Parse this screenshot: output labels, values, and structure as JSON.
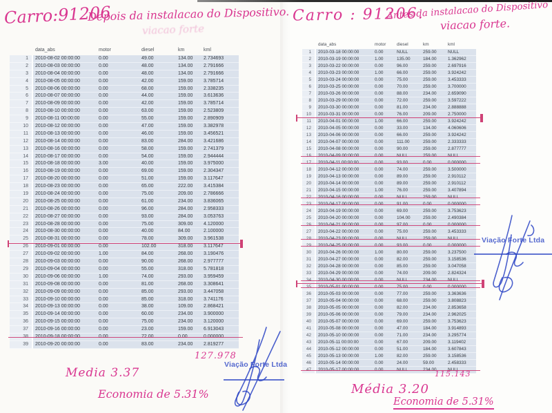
{
  "ink_colors": {
    "handwriting": "#d93690",
    "stamp_blue": "#2b44c4",
    "strike_pink": "#cb2e68",
    "table_band": "#dbe2ec",
    "table_numcol": "#eaeef4"
  },
  "left_page": {
    "handwritten": {
      "car": "Carro:91206",
      "note": "Depois da instalacao do Dispositivo.",
      "ghost": "viacao forte",
      "total": "127.978",
      "media": "Media  3.37",
      "economia": "Economia de 5.31%"
    },
    "stamp": "Viação Forte Ltda",
    "columns": [
      "data_abs",
      "motor",
      "diesel",
      "km",
      "kml"
    ],
    "struck_rows": [
      38
    ],
    "rows": [
      [
        "2010-08-02 00:00:00",
        "0.00",
        "49.00",
        "134.00",
        "2.734693"
      ],
      [
        "2010-08-03 00:00:00",
        "0.00",
        "48.00",
        "134.00",
        "2.791666"
      ],
      [
        "2010-08-04 00:00:00",
        "0.00",
        "48.00",
        "134.00",
        "2.791666"
      ],
      [
        "2010-08-05 00:00:00",
        "0.00",
        "42.00",
        "159.00",
        "3.785714"
      ],
      [
        "2010-08-06 00:00:00",
        "0.00",
        "68.00",
        "159.00",
        "2.338235"
      ],
      [
        "2010-08-07 00:00:00",
        "0.00",
        "44.00",
        "159.00",
        "3.613636"
      ],
      [
        "2010-08-09 00:00:00",
        "0.00",
        "42.00",
        "159.00",
        "3.785714"
      ],
      [
        "2010-08-10 00:00:00",
        "0.00",
        "63.00",
        "159.00",
        "2.523809"
      ],
      [
        "2010-08-11 00:00:00",
        "0.00",
        "55.00",
        "159.00",
        "2.890909"
      ],
      [
        "2010-08-12 00:00:00",
        "0.00",
        "47.00",
        "159.00",
        "3.382978"
      ],
      [
        "2010-08-13 00:00:00",
        "0.00",
        "46.00",
        "159.00",
        "3.456521"
      ],
      [
        "2010-08-14 00:00:00",
        "0.00",
        "83.00",
        "284.00",
        "3.421686"
      ],
      [
        "2010-08-16 00:00:00",
        "0.00",
        "58.00",
        "159.00",
        "2.741379"
      ],
      [
        "2010-08-17 00:00:00",
        "0.00",
        "54.00",
        "159.00",
        "2.944444"
      ],
      [
        "2010-08-18 00:00:00",
        "3.00",
        "40.00",
        "159.00",
        "3.975000"
      ],
      [
        "2010-08-19 00:00:00",
        "0.00",
        "69.00",
        "159.00",
        "2.304347"
      ],
      [
        "2010-08-20 00:00:00",
        "0.00",
        "51.00",
        "159.00",
        "3.117647"
      ],
      [
        "2010-08-23 00:00:00",
        "0.00",
        "65.00",
        "222.00",
        "3.415384"
      ],
      [
        "2010-08-24 00:00:00",
        "0.00",
        "75.00",
        "209.00",
        "2.786666"
      ],
      [
        "2010-08-25 00:00:00",
        "0.00",
        "61.00",
        "234.00",
        "3.836065"
      ],
      [
        "2010-08-26 00:00:00",
        "0.00",
        "96.00",
        "284.00",
        "2.958333"
      ],
      [
        "2010-08-27 00:00:00",
        "0.00",
        "93.00",
        "284.00",
        "3.053763"
      ],
      [
        "2010-08-28 00:00:00",
        "0.00",
        "75.00",
        "309.00",
        "4.120000"
      ],
      [
        "2010-08-30 00:00:00",
        "0.00",
        "40.00",
        "84.00",
        "2.100000"
      ],
      [
        "2010-08-31 00:00:00",
        "0.00",
        "78.00",
        "309.00",
        "3.961538"
      ],
      [
        "2010-09-01 00:00:00",
        "0.00",
        "102.00",
        "318.00",
        "3.117647"
      ],
      [
        "2010-09-02 00:00:00",
        "1.00",
        "84.00",
        "268.00",
        "3.190476"
      ],
      [
        "2010-09-03 00:00:00",
        "0.00",
        "90.00",
        "268.00",
        "2.977777"
      ],
      [
        "2010-09-04 00:00:00",
        "0.00",
        "55.00",
        "318.00",
        "5.781818"
      ],
      [
        "2010-09-06 00:00:00",
        "1.00",
        "74.00",
        "293.00",
        "3.959459"
      ],
      [
        "2010-09-08 00:00:00",
        "0.00",
        "81.00",
        "268.00",
        "3.308641"
      ],
      [
        "2010-09-09 00:00:00",
        "0.00",
        "85.00",
        "293.00",
        "3.447058"
      ],
      [
        "2010-09-10 00:00:00",
        "0.00",
        "85.00",
        "318.00",
        "3.741176"
      ],
      [
        "2010-09-13 00:00:00",
        "0.00",
        "38.00",
        "109.00",
        "2.868421"
      ],
      [
        "2010-09-14 00:00:00",
        "0.00",
        "60.00",
        "234.00",
        "3.900000"
      ],
      [
        "2010-09-15 00:00:00",
        "0.00",
        "75.00",
        "234.00",
        "3.120000"
      ],
      [
        "2010-09-16 00:00:00",
        "0.00",
        "23.00",
        "159.00",
        "6.913043"
      ],
      [
        "2010-09-18 00:00:00",
        "0.00",
        "72.00",
        "0.00",
        "0.000000"
      ],
      [
        "2010-09-20 00:00:00",
        "0.00",
        "83.00",
        "234.00",
        "2.819277"
      ]
    ]
  },
  "right_page": {
    "handwritten": {
      "car": "Carro : 91206.",
      "note": "Antes da instalacao do Dispositivo",
      "note2": "viacao forte.",
      "total": "115.143",
      "media": "Média  3.20",
      "economia": "Economia de 5.31%"
    },
    "stamp": "Viação Forte Ltda",
    "columns": [
      "data_abs",
      "motor",
      "diesel",
      "km",
      "kml"
    ],
    "struck_rows": [
      16,
      17,
      22,
      23,
      26,
      28,
      29,
      34,
      35,
      47
    ],
    "rows": [
      [
        "2010-03-18 00:00:00",
        "0.00",
        "NULL",
        "259.00",
        "NULL"
      ],
      [
        "2010-03-19 00:00:00",
        "1.00",
        "135.00",
        "184.00",
        "1.362962"
      ],
      [
        "2010-03-22 00:00:00",
        "0.00",
        "96.00",
        "259.00",
        "2.697916"
      ],
      [
        "2010-03-23 00:00:00",
        "1.00",
        "66.00",
        "259.00",
        "3.924242"
      ],
      [
        "2010-03-24 00:00:00",
        "0.00",
        "75.00",
        "259.00",
        "3.453333"
      ],
      [
        "2010-03-25 00:00:00",
        "0.00",
        "70.00",
        "259.00",
        "3.700000"
      ],
      [
        "2010-03-26 00:00:00",
        "0.00",
        "88.00",
        "234.00",
        "2.659090"
      ],
      [
        "2010-03-29 00:00:00",
        "0.00",
        "72.00",
        "259.00",
        "3.597222"
      ],
      [
        "2010-03-30 00:00:00",
        "0.00",
        "81.00",
        "234.00",
        "2.888888"
      ],
      [
        "2010-03-31 00:00:00",
        "0.00",
        "76.00",
        "209.00",
        "2.750000"
      ],
      [
        "2010-04-01 00:00:00",
        "1.00",
        "66.00",
        "259.00",
        "3.924242"
      ],
      [
        "2010-04-05 00:00:00",
        "0.00",
        "33.00",
        "134.00",
        "4.060606"
      ],
      [
        "2010-04-06 00:00:00",
        "0.00",
        "66.00",
        "259.00",
        "3.924242"
      ],
      [
        "2010-04-07 00:00:00",
        "0.00",
        "111.00",
        "259.00",
        "2.333333"
      ],
      [
        "2010-04-08 00:00:00",
        "0.00",
        "90.00",
        "259.00",
        "2.877777"
      ],
      [
        "2010-04-09 00:00:00",
        "0.00",
        "NULL",
        "259.00",
        "NULL"
      ],
      [
        "2010-04-11 00:00:00",
        "0.00",
        "93.00",
        "0.00",
        "0.000000"
      ],
      [
        "2010-04-12 00:00:00",
        "0.00",
        "74.00",
        "259.00",
        "3.500000"
      ],
      [
        "2010-04-13 00:00:00",
        "0.00",
        "89.00",
        "259.00",
        "2.910112"
      ],
      [
        "2010-04-14 00:00:00",
        "0.00",
        "89.00",
        "259.00",
        "2.910112"
      ],
      [
        "2010-04-15 00:00:00",
        "1.00",
        "76.00",
        "259.00",
        "3.407894"
      ],
      [
        "2010-04-16 00:00:00",
        "0.00",
        "NULL",
        "259.00",
        "NULL"
      ],
      [
        "2010-04-17 00:00:00",
        "0.00",
        "91.00",
        "0.00",
        "0.000000"
      ],
      [
        "2010-04-19 00:00:00",
        "0.00",
        "69.00",
        "259.00",
        "3.753623"
      ],
      [
        "2010-04-20 00:00:00",
        "0.00",
        "104.00",
        "259.00",
        "2.490384"
      ],
      [
        "2010-04-21 00:00:00",
        "0.00",
        "97.00",
        "0.00",
        "0.000000"
      ],
      [
        "2010-04-22 00:00:00",
        "0.00",
        "75.00",
        "259.00",
        "3.453333"
      ],
      [
        "2010-04-23 00:00:00",
        "0.00",
        "NULL",
        "259.00",
        "NULL"
      ],
      [
        "2010-04-25 00:00:00",
        "0.00",
        "93.00",
        "0.00",
        "0.000000"
      ],
      [
        "2010-04-26 00:00:00",
        "1.00",
        "80.00",
        "259.00",
        "3.237500"
      ],
      [
        "2010-04-27 00:00:00",
        "0.00",
        "82.00",
        "259.00",
        "3.158536"
      ],
      [
        "2010-04-28 00:00:00",
        "0.00",
        "85.00",
        "259.00",
        "3.047058"
      ],
      [
        "2010-04-29 00:00:00",
        "0.00",
        "74.00",
        "209.00",
        "2.824324"
      ],
      [
        "2010-04-30 00:00:00",
        "0.00",
        "NULL",
        "234.00",
        "NULL"
      ],
      [
        "2010-05-01 00:00:00",
        "0.00",
        "75.00",
        "0.00",
        "0.000000"
      ],
      [
        "2010-05-03 00:00:00",
        "0.00",
        "77.00",
        "259.00",
        "3.363636"
      ],
      [
        "2010-05-04 00:00:00",
        "0.00",
        "68.00",
        "259.00",
        "3.808823"
      ],
      [
        "2010-05-05 00:00:00",
        "0.00",
        "82.00",
        "234.00",
        "2.853658"
      ],
      [
        "2010-05-06 00:00:00",
        "0.00",
        "79.00",
        "234.00",
        "2.962025"
      ],
      [
        "2010-05-07 00:00:00",
        "0.00",
        "69.00",
        "259.00",
        "3.753623"
      ],
      [
        "2010-05-08 00:00:00",
        "0.00",
        "47.00",
        "184.00",
        "3.914893"
      ],
      [
        "2010-05-10 00:00:00",
        "0.00",
        "71.00",
        "234.00",
        "3.295774"
      ],
      [
        "2010-05-11 00:00:00",
        "0.00",
        "67.00",
        "209.00",
        "3.119402"
      ],
      [
        "2010-05-12 00:00:00",
        "0.00",
        "51.00",
        "184.00",
        "3.607843"
      ],
      [
        "2010-05-13 00:00:00",
        "1.00",
        "82.00",
        "259.00",
        "3.158536"
      ],
      [
        "2010-05-14 00:00:00",
        "0.00",
        "24.00",
        "59.00",
        "2.458333"
      ],
      [
        "2010-05-17 00:00:00",
        "0.00",
        "NULL",
        "234.00",
        "NULL"
      ]
    ]
  }
}
